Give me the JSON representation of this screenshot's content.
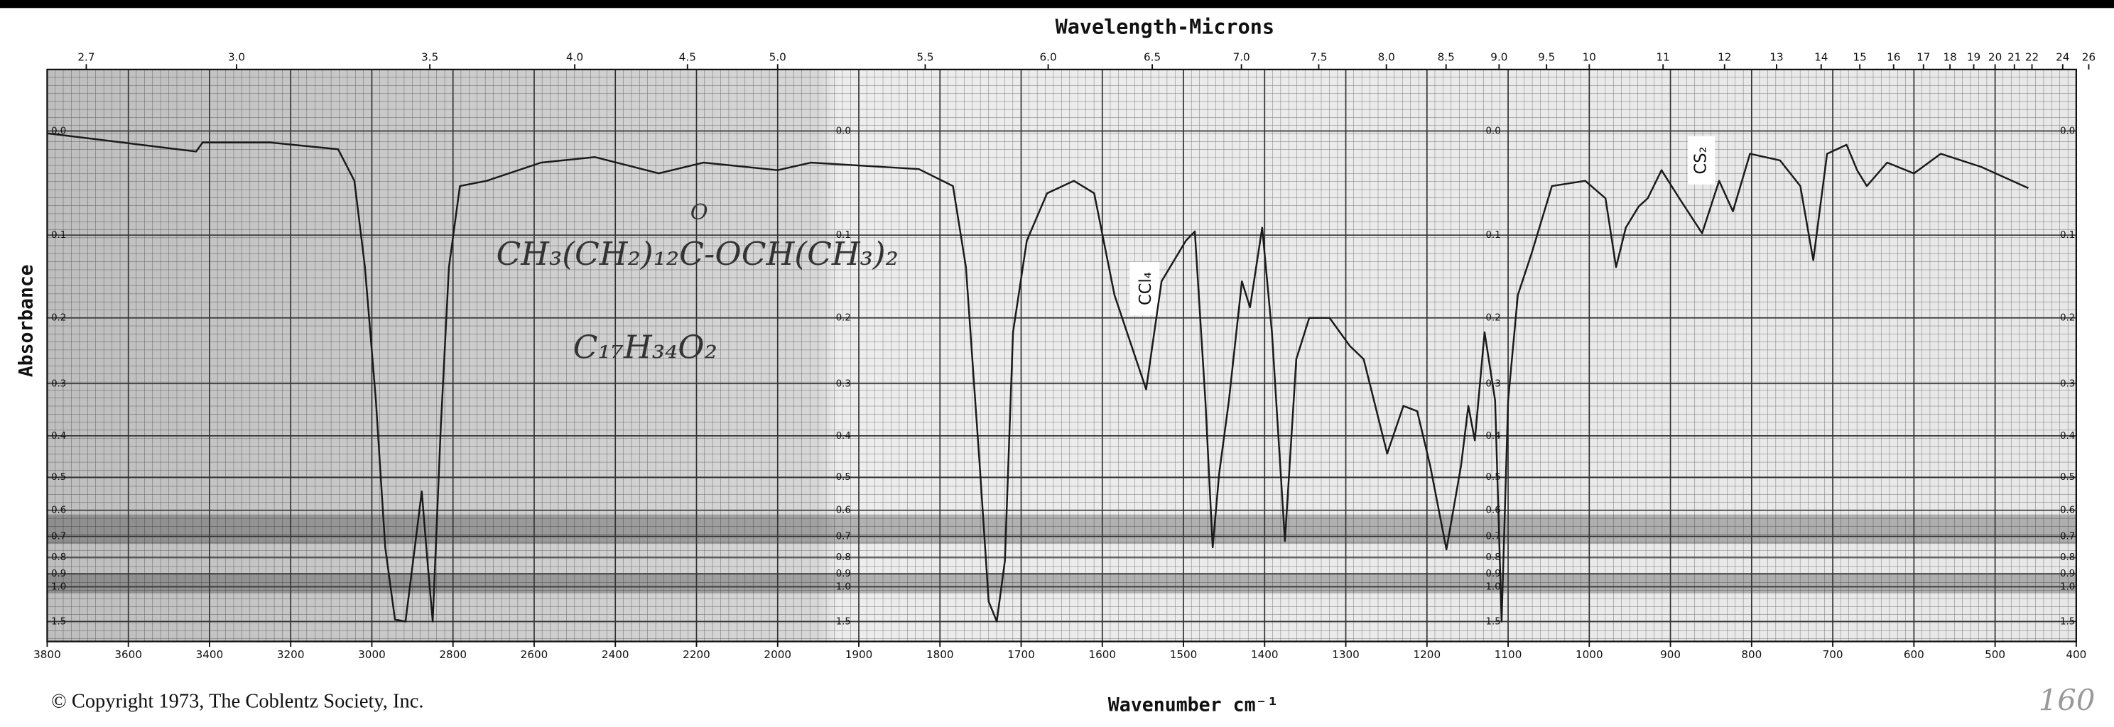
{
  "chart_data": {
    "type": "line",
    "x2label": "Wavelength-Microns",
    "xlabel": "Wavenumber cm⁻¹",
    "ylabel": "Absorbance",
    "copyright": "© Copyright 1973, The Coblentz Society, Inc.",
    "annotations": [
      "CH₃(CH₂)₁₂C-OCH(CH₃)₂",
      "O",
      "C₁₇H₃₄O₂",
      "CCl₄",
      "CS₂",
      "160"
    ],
    "yscale": "absorbance",
    "color": "#1a1a1a",
    "grid": true,
    "xlim": [
      3800,
      400
    ],
    "xticks": [
      3800,
      3600,
      3400,
      3200,
      3000,
      2800,
      2600,
      2400,
      2200,
      2000,
      1900,
      1800,
      1700,
      1600,
      1500,
      1400,
      1300,
      1200,
      1100,
      1000,
      900,
      800,
      700,
      600,
      500,
      400
    ],
    "x2ticks": [
      2.7,
      {
        "value": 3,
        "label": "3.0"
      },
      3.5,
      {
        "value": 4,
        "label": "4.0"
      },
      4.5,
      {
        "value": 5,
        "label": "5.0"
      },
      5.5,
      {
        "value": 6,
        "label": "6.0"
      },
      6.5,
      {
        "value": 7,
        "label": "7.0"
      },
      7.5,
      {
        "value": 8,
        "label": "8.0"
      },
      8.5,
      {
        "value": 9,
        "label": "9.0"
      },
      9.5,
      10,
      11,
      12,
      13,
      14,
      15,
      16,
      17,
      18,
      19,
      20,
      21,
      22,
      24,
      26
    ],
    "ylim": [
      0,
      1.5
    ],
    "yticks": [
      {
        "value": 0,
        "label": "0.0"
      },
      0.1,
      0.2,
      0.3,
      0.4,
      0.5,
      0.6,
      0.7,
      0.8,
      0.9,
      {
        "value": 1,
        "label": "1.0"
      },
      1.5
    ],
    "x": [
      3800,
      3433,
      3417,
      3250,
      3083,
      3043,
      3017,
      2990,
      2967,
      2943,
      2917,
      2890,
      2877,
      2863,
      2850,
      2830,
      2810,
      2783,
      2717,
      2583,
      2450,
      2293,
      2183,
      2000,
      1959,
      1826,
      1784,
      1768,
      1751,
      1740,
      1730,
      1720,
      1710,
      1693,
      1668,
      1635,
      1610,
      1585,
      1546,
      1527,
      1497,
      1486,
      1473,
      1464,
      1456,
      1444,
      1428,
      1418,
      1403,
      1391,
      1375,
      1361,
      1345,
      1320,
      1295,
      1278,
      1249,
      1229,
      1212,
      1196,
      1176,
      1158,
      1149,
      1141,
      1129,
      1116,
      1108,
      1100,
      1088,
      1071,
      1046,
      1005,
      980,
      967,
      955,
      939,
      928,
      911,
      889,
      861,
      840,
      823,
      802,
      765,
      740,
      724,
      707,
      683,
      670,
      658,
      633,
      600,
      567,
      517,
      459
    ],
    "values": [
      0.002,
      0.018,
      0.01,
      0.01,
      0.016,
      0.045,
      0.136,
      0.33,
      0.75,
      1.45,
      1.5,
      0.69,
      0.54,
      0.82,
      1.5,
      0.38,
      0.136,
      0.05,
      0.045,
      0.028,
      0.023,
      0.038,
      0.028,
      0.035,
      0.028,
      0.034,
      0.05,
      0.136,
      0.47,
      1.15,
      1.5,
      0.82,
      0.22,
      0.106,
      0.057,
      0.045,
      0.057,
      0.17,
      0.31,
      0.153,
      0.106,
      0.096,
      0.33,
      0.75,
      0.49,
      0.33,
      0.153,
      0.186,
      0.092,
      0.22,
      0.72,
      0.26,
      0.2,
      0.2,
      0.24,
      0.26,
      0.44,
      0.34,
      0.35,
      0.47,
      0.76,
      0.47,
      0.34,
      0.41,
      0.22,
      0.33,
      1.5,
      0.33,
      0.17,
      0.12,
      0.05,
      0.045,
      0.062,
      0.136,
      0.092,
      0.07,
      0.062,
      0.035,
      0.062,
      0.098,
      0.045,
      0.075,
      0.02,
      0.026,
      0.05,
      0.128,
      0.02,
      0.012,
      0.035,
      0.05,
      0.028,
      0.038,
      0.02,
      0.032,
      0.052
    ]
  }
}
